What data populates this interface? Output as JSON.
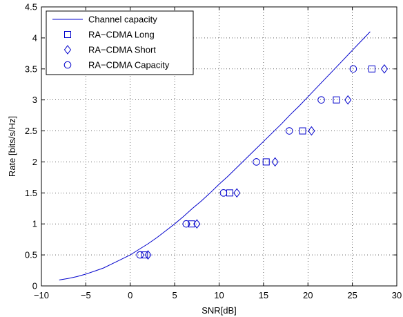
{
  "chart_data": {
    "type": "line",
    "title": "",
    "xlabel": "SNR[dB]",
    "ylabel": "Rate [bits/s/Hz]",
    "xlim": [
      -10,
      30
    ],
    "ylim": [
      0,
      4.5
    ],
    "xticks": [
      -10,
      -5,
      0,
      5,
      10,
      15,
      20,
      25,
      30
    ],
    "yticks": [
      0,
      0.5,
      1,
      1.5,
      2,
      2.5,
      3,
      3.5,
      4,
      4.5
    ],
    "x_tick_labels": [
      "−10",
      "−5",
      "0",
      "5",
      "10",
      "15",
      "20",
      "25",
      "30"
    ],
    "y_tick_labels": [
      "0",
      "0.5",
      "1",
      "1.5",
      "2",
      "2.5",
      "3",
      "3.5",
      "4",
      "4.5"
    ],
    "grid": true,
    "legend_position": "top-left",
    "series": [
      {
        "name": "Channel capacity",
        "type": "line",
        "color": "#0000cc",
        "x": [
          -8,
          -7,
          -6,
          -5,
          -4,
          -3,
          -2,
          -1,
          0,
          1,
          2,
          3,
          4,
          5,
          6,
          7,
          8,
          9,
          10,
          11,
          12,
          13,
          14,
          15,
          16,
          17,
          18,
          19,
          20,
          21,
          22,
          23,
          24,
          25,
          26,
          27
        ],
        "y": [
          0.096,
          0.12,
          0.15,
          0.19,
          0.24,
          0.29,
          0.36,
          0.43,
          0.5,
          0.59,
          0.68,
          0.78,
          0.89,
          1.0,
          1.12,
          1.25,
          1.37,
          1.5,
          1.64,
          1.77,
          1.91,
          2.05,
          2.19,
          2.33,
          2.47,
          2.61,
          2.76,
          2.9,
          3.05,
          3.2,
          3.35,
          3.5,
          3.65,
          3.8,
          3.95,
          4.1
        ]
      },
      {
        "name": "RA−CDMA Long",
        "type": "scatter",
        "marker": "square",
        "color": "#0000cc",
        "x": [
          1.6,
          6.9,
          11.2,
          15.3,
          19.4,
          23.2,
          27.2
        ],
        "y": [
          0.5,
          1.0,
          1.5,
          2.0,
          2.5,
          3.0,
          3.5
        ]
      },
      {
        "name": "RA−CDMA Short",
        "type": "scatter",
        "marker": "diamond",
        "color": "#0000cc",
        "x": [
          2.0,
          7.5,
          12.0,
          16.3,
          20.4,
          24.5,
          28.6
        ],
        "y": [
          0.5,
          1.0,
          1.5,
          2.0,
          2.5,
          3.0,
          3.5
        ]
      },
      {
        "name": "RA−CDMA Capacity",
        "type": "scatter",
        "marker": "circle",
        "color": "#0000cc",
        "x": [
          1.1,
          6.3,
          10.5,
          14.2,
          17.9,
          21.5,
          25.1
        ],
        "y": [
          0.5,
          1.0,
          1.5,
          2.0,
          2.5,
          3.0,
          3.5
        ]
      }
    ]
  }
}
